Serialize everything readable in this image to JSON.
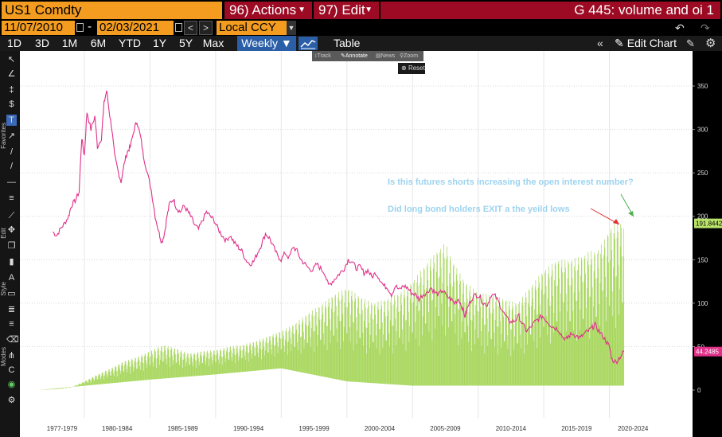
{
  "header": {
    "ticker": "US1 Comdty",
    "actions_num": "96)",
    "actions_label": "Actions",
    "edit_num": "97)",
    "edit_label": "Edit",
    "title": "G 445: volume and oi 1"
  },
  "controls": {
    "start_date": "11/07/2010",
    "end_date": "02/03/2021",
    "currency": "Local CCY",
    "table_label": "Table",
    "edit_chart_label": "Edit Chart"
  },
  "periods": [
    {
      "label": "1D",
      "active": false
    },
    {
      "label": "3D",
      "active": false
    },
    {
      "label": "1M",
      "active": false
    },
    {
      "label": "6M",
      "active": false
    },
    {
      "label": "YTD",
      "active": false
    },
    {
      "label": "1Y",
      "active": false
    },
    {
      "label": "5Y",
      "active": false
    },
    {
      "label": "Max",
      "active": false
    },
    {
      "label": "Weekly",
      "active": true
    }
  ],
  "mini_toolbar": {
    "track": "Track",
    "annotate": "Annotate",
    "news": "News",
    "zoom": "Zoom",
    "reset": "Reset"
  },
  "toolbar_labels": {
    "favorites": "Favorites",
    "edit": "Edit",
    "style": "Style",
    "modes": "Modes"
  },
  "annotations": {
    "line1": "Is this futures shorts increasing the open interest number?",
    "line2": "Did long bond holders EXIT a the yeild lows"
  },
  "colors": {
    "bloomberg_orange": "#f39c1f",
    "header_red": "#9c0b23",
    "price_series": "#e0308a",
    "oi_series": "#a6d65a",
    "annotation_text": "#9dd3ef",
    "arrow_red": "#e03030",
    "arrow_green": "#4caf50"
  },
  "chart_data": {
    "type": "area",
    "ylim": [
      0,
      360
    ],
    "y_ticks": [
      0,
      50,
      100,
      150,
      200,
      250,
      300,
      350
    ],
    "x_labels": [
      "1977-1979",
      "1980-1984",
      "1985-1989",
      "1990-1994",
      "1995-1999",
      "2000-2004",
      "2005-2009",
      "2010-2014",
      "2015-2019",
      "2020-2024"
    ],
    "last_value_labels": {
      "oi": "191.8442",
      "price": "44.2485"
    },
    "series": [
      {
        "color": "#e0308a",
        "points": [
          [
            1977.6,
            182
          ],
          [
            1977.9,
            178
          ],
          [
            1978.2,
            186
          ],
          [
            1978.5,
            192
          ],
          [
            1978.8,
            200
          ],
          [
            1979.0,
            212
          ],
          [
            1979.3,
            218
          ],
          [
            1979.6,
            228
          ],
          [
            1979.8,
            290
          ],
          [
            1980.0,
            270
          ],
          [
            1980.2,
            320
          ],
          [
            1980.5,
            300
          ],
          [
            1980.8,
            315
          ],
          [
            1981.0,
            280
          ],
          [
            1981.3,
            290
          ],
          [
            1981.5,
            330
          ],
          [
            1981.7,
            345
          ],
          [
            1981.9,
            320
          ],
          [
            1982.1,
            300
          ],
          [
            1982.3,
            270
          ],
          [
            1982.6,
            250
          ],
          [
            1982.8,
            240
          ],
          [
            1983.1,
            265
          ],
          [
            1983.3,
            275
          ],
          [
            1983.5,
            280
          ],
          [
            1983.8,
            300
          ],
          [
            1984.0,
            310
          ],
          [
            1984.3,
            290
          ],
          [
            1984.5,
            270
          ],
          [
            1984.8,
            250
          ],
          [
            1985.1,
            230
          ],
          [
            1985.4,
            200
          ],
          [
            1985.7,
            180
          ],
          [
            1985.9,
            170
          ],
          [
            1986.1,
            180
          ],
          [
            1986.3,
            200
          ],
          [
            1986.5,
            215
          ],
          [
            1986.8,
            220
          ],
          [
            1987.0,
            210
          ],
          [
            1987.3,
            205
          ],
          [
            1987.6,
            212
          ],
          [
            1987.9,
            205
          ],
          [
            1988.1,
            200
          ],
          [
            1988.4,
            190
          ],
          [
            1988.7,
            185
          ],
          [
            1989.0,
            195
          ],
          [
            1989.3,
            205
          ],
          [
            1989.6,
            200
          ],
          [
            1989.9,
            195
          ],
          [
            1990.2,
            185
          ],
          [
            1990.5,
            178
          ],
          [
            1990.8,
            172
          ],
          [
            1991.1,
            178
          ],
          [
            1991.4,
            170
          ],
          [
            1991.7,
            165
          ],
          [
            1992.0,
            160
          ],
          [
            1992.3,
            150
          ],
          [
            1992.6,
            145
          ],
          [
            1992.9,
            148
          ],
          [
            1993.2,
            158
          ],
          [
            1993.5,
            168
          ],
          [
            1993.8,
            180
          ],
          [
            1994.1,
            175
          ],
          [
            1994.4,
            165
          ],
          [
            1994.7,
            155
          ],
          [
            1995.0,
            150
          ],
          [
            1995.3,
            158
          ],
          [
            1995.6,
            152
          ],
          [
            1995.9,
            165
          ],
          [
            1996.2,
            160
          ],
          [
            1996.5,
            150
          ],
          [
            1996.8,
            145
          ],
          [
            1997.1,
            140
          ],
          [
            1997.4,
            138
          ],
          [
            1997.7,
            145
          ],
          [
            1998.0,
            140
          ],
          [
            1998.3,
            135
          ],
          [
            1998.6,
            120
          ],
          [
            1998.9,
            125
          ],
          [
            1999.2,
            130
          ],
          [
            1999.5,
            135
          ],
          [
            1999.8,
            140
          ],
          [
            2000.1,
            150
          ],
          [
            2000.4,
            148
          ],
          [
            2000.7,
            140
          ],
          [
            2001.0,
            142
          ],
          [
            2001.3,
            135
          ],
          [
            2001.6,
            138
          ],
          [
            2001.9,
            130
          ],
          [
            2002.2,
            135
          ],
          [
            2002.5,
            128
          ],
          [
            2002.8,
            120
          ],
          [
            2003.1,
            118
          ],
          [
            2003.4,
            110
          ],
          [
            2003.7,
            120
          ],
          [
            2004.0,
            115
          ],
          [
            2004.3,
            120
          ],
          [
            2004.6,
            118
          ],
          [
            2004.9,
            112
          ],
          [
            2005.2,
            110
          ],
          [
            2005.5,
            105
          ],
          [
            2005.8,
            110
          ],
          [
            2006.1,
            112
          ],
          [
            2006.4,
            118
          ],
          [
            2006.7,
            112
          ],
          [
            2007.0,
            110
          ],
          [
            2007.3,
            115
          ],
          [
            2007.6,
            108
          ],
          [
            2007.9,
            105
          ],
          [
            2008.2,
            100
          ],
          [
            2008.5,
            105
          ],
          [
            2008.8,
            95
          ],
          [
            2009.0,
            85
          ],
          [
            2009.2,
            95
          ],
          [
            2009.5,
            105
          ],
          [
            2009.8,
            110
          ],
          [
            2010.1,
            108
          ],
          [
            2010.4,
            100
          ],
          [
            2010.7,
            98
          ],
          [
            2011.0,
            110
          ],
          [
            2011.3,
            108
          ],
          [
            2011.6,
            100
          ],
          [
            2011.9,
            90
          ],
          [
            2012.2,
            82
          ],
          [
            2012.5,
            78
          ],
          [
            2012.8,
            80
          ],
          [
            2013.1,
            85
          ],
          [
            2013.4,
            75
          ],
          [
            2013.7,
            68
          ],
          [
            2014.0,
            72
          ],
          [
            2014.3,
            78
          ],
          [
            2014.6,
            82
          ],
          [
            2014.9,
            85
          ],
          [
            2015.2,
            80
          ],
          [
            2015.5,
            75
          ],
          [
            2015.8,
            72
          ],
          [
            2016.1,
            70
          ],
          [
            2016.4,
            62
          ],
          [
            2016.7,
            58
          ],
          [
            2016.9,
            62
          ],
          [
            2017.2,
            65
          ],
          [
            2017.5,
            62
          ],
          [
            2017.8,
            60
          ],
          [
            2018.1,
            65
          ],
          [
            2018.4,
            68
          ],
          [
            2018.7,
            72
          ],
          [
            2018.9,
            75
          ],
          [
            2019.2,
            68
          ],
          [
            2019.5,
            62
          ],
          [
            2019.8,
            55
          ],
          [
            2020.0,
            50
          ],
          [
            2020.2,
            35
          ],
          [
            2020.5,
            32
          ],
          [
            2020.8,
            38
          ],
          [
            2021.1,
            44.25
          ]
        ]
      },
      {
        "color": "#a6d65a",
        "envelope": [
          [
            1976.5,
            0
          ],
          [
            1978,
            1
          ],
          [
            1979,
            3
          ],
          [
            1980,
            10
          ],
          [
            1981,
            18
          ],
          [
            1982,
            25
          ],
          [
            1983,
            33
          ],
          [
            1984,
            38
          ],
          [
            1985,
            45
          ],
          [
            1986,
            52
          ],
          [
            1987,
            48
          ],
          [
            1988,
            42
          ],
          [
            1989,
            45
          ],
          [
            1990,
            46
          ],
          [
            1991,
            50
          ],
          [
            1992,
            52
          ],
          [
            1993,
            56
          ],
          [
            1994,
            62
          ],
          [
            1995,
            68
          ],
          [
            1996,
            76
          ],
          [
            1997,
            88
          ],
          [
            1998,
            98
          ],
          [
            1999,
            110
          ],
          [
            2000,
            118
          ],
          [
            2001,
            108
          ],
          [
            2002,
            100
          ],
          [
            2003,
            105
          ],
          [
            2004,
            112
          ],
          [
            2005,
            125
          ],
          [
            2006,
            145
          ],
          [
            2007,
            162
          ],
          [
            2007.5,
            170
          ],
          [
            2008,
            150
          ],
          [
            2009,
            125
          ],
          [
            2010,
            112
          ],
          [
            2011,
            110
          ],
          [
            2012,
            105
          ],
          [
            2013,
            100
          ],
          [
            2014,
            120
          ],
          [
            2015,
            138
          ],
          [
            2016,
            150
          ],
          [
            2017,
            150
          ],
          [
            2018,
            155
          ],
          [
            2018.5,
            160
          ],
          [
            2019,
            160
          ],
          [
            2019.5,
            170
          ],
          [
            2020,
            185
          ],
          [
            2020.5,
            195
          ],
          [
            2021.1,
            191.84
          ]
        ],
        "troughs": [
          [
            1976.5,
            0
          ],
          [
            1985,
            12
          ],
          [
            1990,
            18
          ],
          [
            1995,
            25
          ],
          [
            2000,
            10
          ],
          [
            2005,
            5
          ],
          [
            2010,
            5
          ],
          [
            2015,
            5
          ],
          [
            2021.1,
            5
          ]
        ]
      }
    ]
  }
}
